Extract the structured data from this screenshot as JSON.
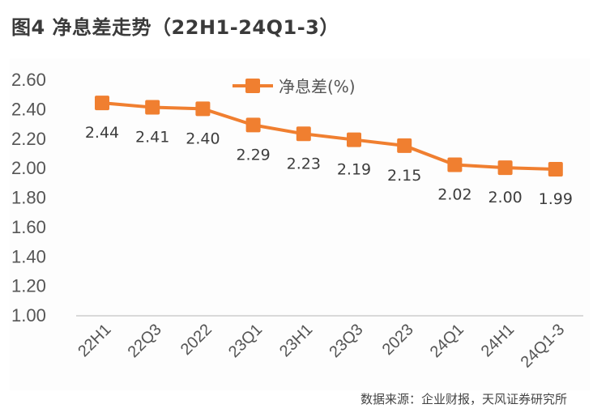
{
  "title": "图4  净息差走势（22H1-24Q1-3）",
  "source": "数据来源：企业财报，天风证券研究所",
  "colors": {
    "series": "#f07f30",
    "axis": "#d9d9d9",
    "text": "#555555"
  },
  "chart_data": {
    "type": "line",
    "title": "图4 净息差走势（22H1-24Q1-3）",
    "xlabel": "",
    "ylabel": "",
    "ylim": [
      1.0,
      2.6
    ],
    "yticks": [
      "2.60",
      "2.40",
      "2.20",
      "2.00",
      "1.80",
      "1.60",
      "1.40",
      "1.20",
      "1.00"
    ],
    "grid": false,
    "legend_position": "top-center",
    "categories": [
      "22H1",
      "22Q3",
      "2022",
      "23Q1",
      "23H1",
      "23Q3",
      "2023",
      "24Q1",
      "24H1",
      "24Q1-3"
    ],
    "series": [
      {
        "name": "净息差(%)",
        "values": [
          2.44,
          2.41,
          2.4,
          2.29,
          2.23,
          2.19,
          2.15,
          2.02,
          2.0,
          1.99
        ],
        "labels": [
          "2.44",
          "2.41",
          "2.40",
          "2.29",
          "2.23",
          "2.19",
          "2.15",
          "2.02",
          "2.00",
          "1.99"
        ],
        "marker": "square",
        "color": "#f07f30"
      }
    ]
  }
}
